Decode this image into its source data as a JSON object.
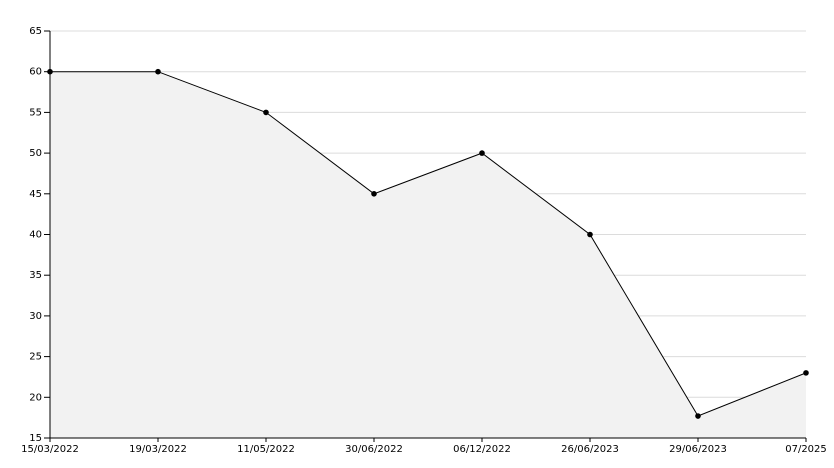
{
  "chart_data": {
    "type": "area",
    "categories": [
      "15/03/2022",
      "19/03/2022",
      "11/05/2022",
      "30/06/2022",
      "06/12/2022",
      "26/06/2023",
      "29/06/2023",
      "07/2025"
    ],
    "values": [
      60,
      60,
      55,
      45,
      50,
      40,
      17.7,
      23
    ],
    "color": "#000000",
    "fill_color": "#f2f2f2",
    "ylim": [
      15,
      65
    ],
    "yticks": [
      15,
      20,
      25,
      30,
      35,
      40,
      45,
      50,
      55,
      60,
      65
    ],
    "grid": true
  }
}
